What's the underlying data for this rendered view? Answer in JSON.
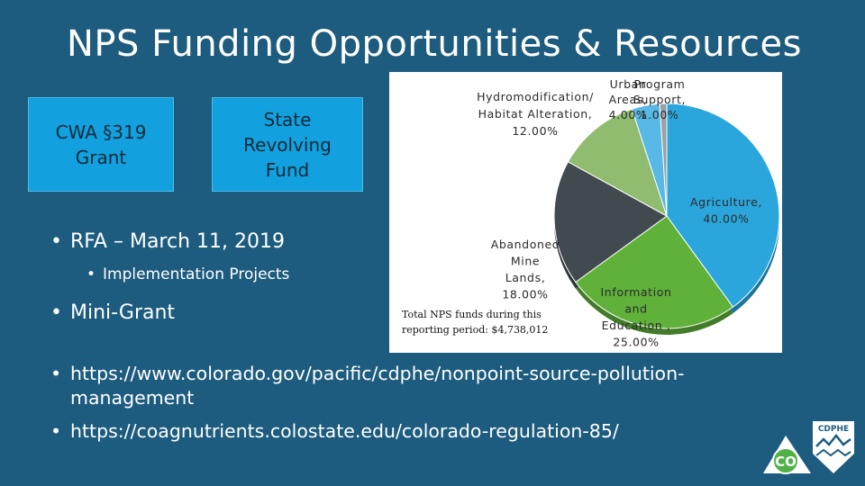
{
  "title": "NPS Funding Opportunities & Resources",
  "boxes": [
    {
      "line1": "CWA §319",
      "line2": "Grant"
    },
    {
      "line1": "State",
      "line2": "Revolving",
      "line3": "Fund"
    }
  ],
  "bullets": {
    "rfa": "RFA – March 11, 2019",
    "implementation": "Implementation Projects",
    "mini_grant": "Mini-Grant"
  },
  "links": [
    "https://www.colorado.gov/pacific/cdphe/nonpoint-source-pollution-management",
    "https://coagnutrients.colostate.edu/colorado-regulation-85/"
  ],
  "logo": {
    "text": "CDPHE",
    "monogram": "CO"
  },
  "chart_data": {
    "type": "pie",
    "title": "",
    "note": "Total NPS funds during this reporting period: $4,738,012",
    "slices": [
      {
        "label": "Agriculture",
        "value": 40,
        "display": "Agriculture, 40.00%",
        "color": "#2aa6dc"
      },
      {
        "label": "Information and Education",
        "value": 25,
        "display": "Information and Education , 25.00%",
        "color": "#5fb13a"
      },
      {
        "label": "Abandoned Mine Lands",
        "value": 18,
        "display": "Abandoned Mine Lands, 18.00%",
        "color": "#414a4f"
      },
      {
        "label": "Hydromodification/Habitat Alteration",
        "value": 12,
        "display": "Hydromodification/ Habitat Alteration, 12.00%",
        "color": "#8fbc6f"
      },
      {
        "label": "Urban Areas",
        "value": 4,
        "display": "Urban Areas, 4.00%",
        "color": "#58b9e6"
      },
      {
        "label": "Program Support",
        "value": 1,
        "display": "Program Support, 1.00%",
        "color": "#9aa0a4"
      }
    ],
    "label_text": {
      "agriculture": [
        "Agriculture,",
        "40.00%"
      ],
      "info": [
        "Information",
        "and",
        "Education ,",
        "25.00%"
      ],
      "aml": [
        "Abandoned",
        "Mine",
        "Lands,",
        "18.00%"
      ],
      "hydro": [
        "Hydromodification/",
        "Habitat Alteration,",
        "12.00%"
      ],
      "urban": [
        "Urban",
        "Areas,",
        "4.00%"
      ],
      "program": [
        "Program",
        "Support,",
        "1.00%"
      ]
    }
  }
}
